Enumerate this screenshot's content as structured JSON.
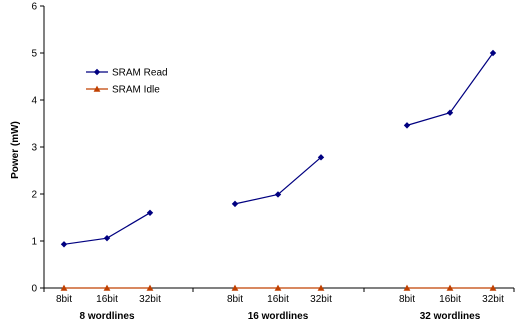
{
  "chart_data": {
    "type": "line",
    "ylabel": "Power (mW)",
    "ylim": [
      0,
      6
    ],
    "yticks": [
      0,
      1,
      2,
      3,
      4,
      5,
      6
    ],
    "groups": [
      {
        "label": "8 wordlines",
        "categories": [
          "8bit",
          "16bit",
          "32bit"
        ]
      },
      {
        "label": "16 wordlines",
        "categories": [
          "8bit",
          "16bit",
          "32bit"
        ]
      },
      {
        "label": "32 wordlines",
        "categories": [
          "8bit",
          "16bit",
          "32bit"
        ]
      }
    ],
    "series": [
      {
        "name": "SRAM Read",
        "color": "#000080",
        "marker": "diamond",
        "values": [
          [
            0.93,
            1.06,
            1.6
          ],
          [
            1.79,
            1.99,
            2.78
          ],
          [
            3.46,
            3.73,
            5.0
          ]
        ]
      },
      {
        "name": "SRAM Idle",
        "color": "#c04000",
        "marker": "triangle",
        "values": [
          [
            0,
            0,
            0
          ],
          [
            0,
            0,
            0
          ],
          [
            0,
            0,
            0
          ]
        ]
      }
    ],
    "legend": "upper-left",
    "grid": false
  }
}
